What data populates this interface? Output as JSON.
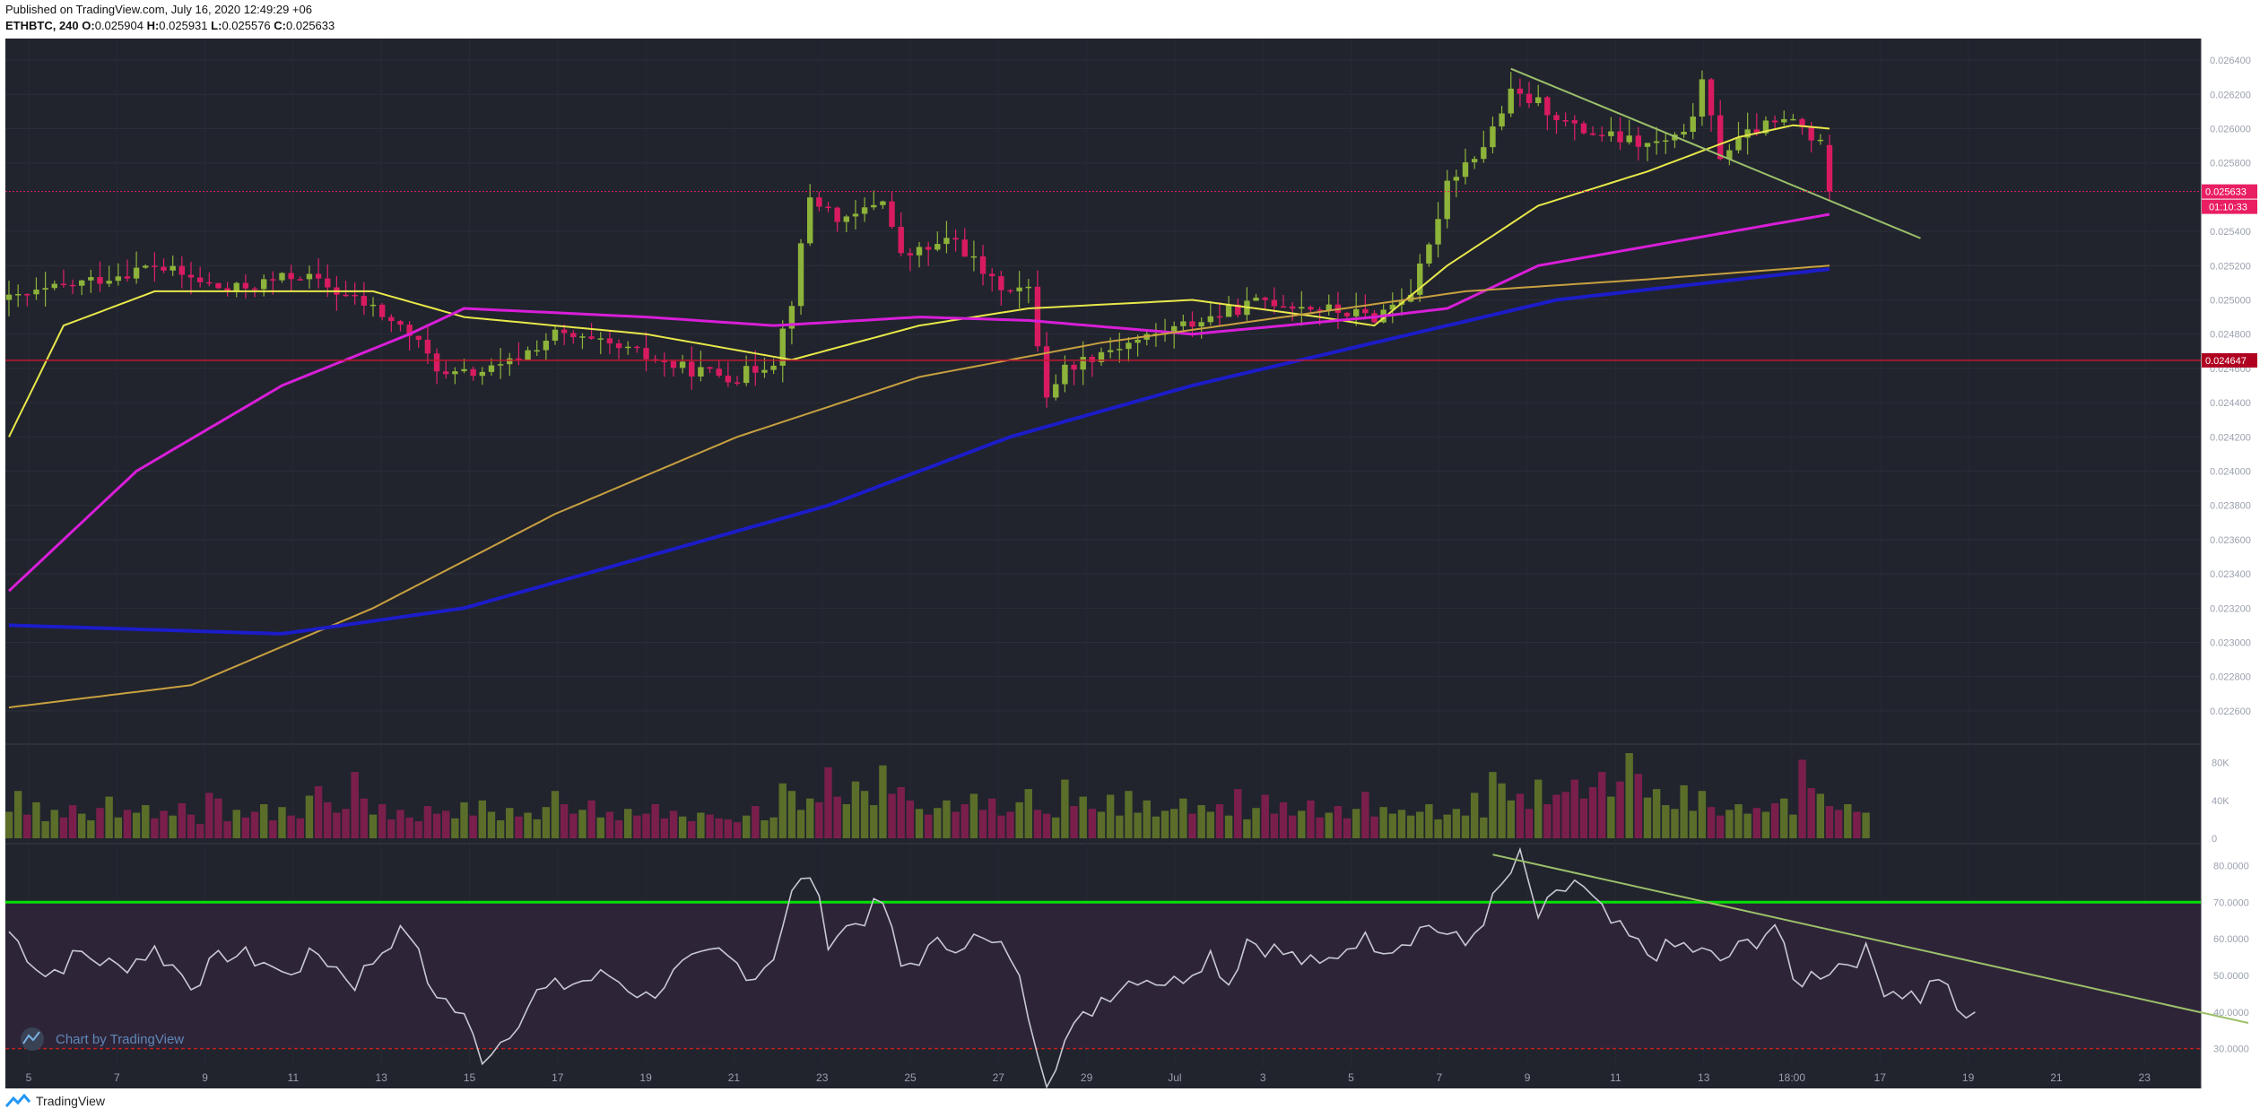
{
  "header": {
    "published": "Published on TradingView.com, July 16, 2020 12:49:29 +06",
    "symbol": "ETHBTC, 240",
    "o_label": "O:",
    "o": "0.025904",
    "h_label": "H:",
    "h": "0.025931",
    "l_label": "L:",
    "l": "0.025576",
    "c_label": "C:",
    "c": "0.025633"
  },
  "footer": {
    "brand": "TradingView"
  },
  "watermark": "Chart by TradingView",
  "colors": {
    "background": "#21242d",
    "up": "#6b8e23",
    "down": "#e91e63",
    "price_label": "#e91e63",
    "support_label": "#b00020",
    "ma_yellow": "#e8e84a",
    "ma_magenta": "#d81ed8",
    "ma_tan": "#c8a040",
    "ma_blue": "#1c1cc8",
    "trendline": "#9cc06a",
    "rsi_line": "#c8c8d2",
    "rsi_overbought": "#00e000",
    "rsi_oversold": "#c02020"
  },
  "chart_data": [
    {
      "type": "candlestick",
      "ylim": [
        0.0225,
        0.0265
      ],
      "y_ticks": [
        "0.026400",
        "0.026200",
        "0.026000",
        "0.025800",
        "0.025400",
        "0.025200",
        "0.025000",
        "0.024800",
        "0.024600",
        "0.024400",
        "0.024200",
        "0.024000",
        "0.023800",
        "0.023600",
        "0.023400",
        "0.023200",
        "0.023000",
        "0.022800",
        "0.022600"
      ],
      "x_ticks": [
        "5",
        "7",
        "9",
        "11",
        "13",
        "15",
        "17",
        "19",
        "21",
        "23",
        "25",
        "27",
        "29",
        "Jul",
        "3",
        "5",
        "7",
        "9",
        "11",
        "13",
        "18:00",
        "17",
        "19",
        "21",
        "23"
      ],
      "last_price": "0.025633",
      "countdown": "01:10:33",
      "support_level": "0.024647",
      "anchors": [
        [
          0,
          0.025
        ],
        [
          8,
          0.0251
        ],
        [
          16,
          0.0252
        ],
        [
          24,
          0.02505
        ],
        [
          32,
          0.02515
        ],
        [
          40,
          0.02495
        ],
        [
          44,
          0.0248
        ],
        [
          48,
          0.02455
        ],
        [
          54,
          0.0246
        ],
        [
          60,
          0.0248
        ],
        [
          68,
          0.0247
        ],
        [
          74,
          0.0246
        ],
        [
          80,
          0.02455
        ],
        [
          84,
          0.02465
        ],
        [
          86,
          0.025
        ],
        [
          88,
          0.0256
        ],
        [
          92,
          0.02545
        ],
        [
          96,
          0.0256
        ],
        [
          98,
          0.02525
        ],
        [
          104,
          0.02535
        ],
        [
          108,
          0.0251
        ],
        [
          112,
          0.02505
        ],
        [
          114,
          0.02445
        ],
        [
          116,
          0.0246
        ],
        [
          120,
          0.0247
        ],
        [
          126,
          0.0248
        ],
        [
          132,
          0.0249
        ],
        [
          138,
          0.025
        ],
        [
          144,
          0.02495
        ],
        [
          150,
          0.0249
        ],
        [
          154,
          0.02505
        ],
        [
          156,
          0.0253
        ],
        [
          158,
          0.0257
        ],
        [
          162,
          0.0259
        ],
        [
          165,
          0.0262
        ],
        [
          168,
          0.02615
        ],
        [
          172,
          0.026
        ],
        [
          176,
          0.02595
        ],
        [
          180,
          0.0259
        ],
        [
          184,
          0.02595
        ],
        [
          186,
          0.02625
        ],
        [
          188,
          0.02585
        ],
        [
          192,
          0.026
        ],
        [
          196,
          0.02605
        ],
        [
          199,
          0.0259
        ],
        [
          200,
          0.02563
        ]
      ],
      "moving_averages": [
        {
          "color": "yellow",
          "values": [
            [
              0,
              0.0242
            ],
            [
              6,
              0.02485
            ],
            [
              16,
              0.02505
            ],
            [
              40,
              0.02505
            ],
            [
              50,
              0.0249
            ],
            [
              70,
              0.0248
            ],
            [
              86,
              0.02465
            ],
            [
              100,
              0.02485
            ],
            [
              112,
              0.02495
            ],
            [
              130,
              0.025
            ],
            [
              144,
              0.0249
            ],
            [
              150,
              0.02485
            ],
            [
              158,
              0.0252
            ],
            [
              168,
              0.02555
            ],
            [
              180,
              0.02575
            ],
            [
              190,
              0.02595
            ],
            [
              196,
              0.02602
            ],
            [
              200,
              0.026
            ]
          ]
        },
        {
          "color": "magenta",
          "values": [
            [
              0,
              0.0233
            ],
            [
              14,
              0.024
            ],
            [
              30,
              0.0245
            ],
            [
              44,
              0.0248
            ],
            [
              50,
              0.02495
            ],
            [
              70,
              0.0249
            ],
            [
              84,
              0.02485
            ],
            [
              100,
              0.0249
            ],
            [
              112,
              0.02488
            ],
            [
              130,
              0.0248
            ],
            [
              150,
              0.0249
            ],
            [
              158,
              0.02495
            ],
            [
              168,
              0.0252
            ],
            [
              184,
              0.02535
            ],
            [
              200,
              0.0255
            ]
          ]
        },
        {
          "color": "tan",
          "values": [
            [
              0,
              0.02262
            ],
            [
              20,
              0.02275
            ],
            [
              40,
              0.0232
            ],
            [
              60,
              0.02375
            ],
            [
              80,
              0.0242
            ],
            [
              100,
              0.02455
            ],
            [
              120,
              0.02475
            ],
            [
              140,
              0.0249
            ],
            [
              160,
              0.02505
            ],
            [
              180,
              0.02512
            ],
            [
              200,
              0.0252
            ]
          ]
        },
        {
          "color": "blue",
          "values": [
            [
              0,
              0.0231
            ],
            [
              30,
              0.02305
            ],
            [
              50,
              0.0232
            ],
            [
              70,
              0.0235
            ],
            [
              90,
              0.0238
            ],
            [
              110,
              0.0242
            ],
            [
              130,
              0.0245
            ],
            [
              150,
              0.02475
            ],
            [
              170,
              0.025
            ],
            [
              190,
              0.02512
            ],
            [
              200,
              0.02518
            ]
          ]
        }
      ],
      "trendline": [
        [
          165,
          0.02635
        ],
        [
          210,
          0.02536
        ]
      ]
    },
    {
      "type": "bar",
      "name": "volume",
      "ylim": [
        0,
        90000
      ],
      "y_ticks": [
        "80K",
        "40K",
        "0"
      ],
      "values": [
        28000,
        50000,
        25000,
        38000,
        18000,
        30000,
        22000,
        35000,
        26000,
        19000,
        32000,
        44000,
        22000,
        30000,
        27000,
        35000,
        21000,
        29000,
        24000,
        37000,
        25000,
        15000,
        48000,
        42000,
        18000,
        30000,
        22000,
        28000,
        36000,
        19000,
        33000,
        24000,
        21000,
        45000,
        55000,
        38000,
        27000,
        31000,
        70000,
        42000,
        25000,
        36000,
        20000,
        30000,
        22000,
        18000,
        34000,
        26000,
        29000,
        21000,
        38000,
        24000,
        40000,
        28000,
        19000,
        32000,
        23000,
        27000,
        20000,
        33000,
        50000,
        36000,
        26000,
        30000,
        40000,
        22000,
        28000,
        19000,
        31000,
        24000,
        26000,
        36000,
        21000,
        29000,
        23000,
        18000,
        27000,
        25000,
        21000,
        20000,
        17000,
        24000,
        34000,
        19000,
        22000,
        58000,
        50000,
        30000,
        42000,
        38000,
        75000,
        44000,
        36000,
        60000,
        50000,
        35000,
        77000,
        47000,
        54000,
        40000,
        31000,
        25000,
        32000,
        40000,
        28000,
        36000,
        47000,
        30000,
        42000,
        24000,
        28000,
        38000,
        52000,
        30000,
        26000,
        22000,
        62000,
        34000,
        44000,
        31000,
        28000,
        46000,
        24000,
        50000,
        27000,
        40000,
        23000,
        29000,
        31000,
        42000,
        26000,
        35000,
        28000,
        36000,
        24000,
        52000,
        20000,
        32000,
        46000,
        26000,
        38000,
        24000,
        29000,
        40000,
        22000,
        27000,
        34000,
        21000,
        31000,
        49000,
        23000,
        33000,
        26000,
        30000,
        24000,
        28000,
        36000,
        20000,
        25000,
        31000,
        24000,
        48000,
        22000,
        70000,
        58000,
        40000,
        47000,
        31000,
        62000,
        36000,
        46000,
        49000,
        62000,
        42000,
        54000,
        70000,
        44000,
        60000,
        101000,
        68000,
        43000,
        52000,
        35000,
        31000,
        56000,
        29000,
        50000,
        33000,
        24000,
        30000,
        36000,
        26000,
        32000,
        28000,
        37000,
        42000,
        25000,
        83000,
        53000,
        47000,
        34000,
        30000,
        36000,
        28000,
        27000
      ]
    },
    {
      "type": "line",
      "name": "RSI",
      "ylim": [
        25,
        85
      ],
      "y_ticks": [
        "80.0000",
        "70.0000",
        "60.0000",
        "50.0000",
        "40.0000",
        "30.0000"
      ],
      "overbought": 70,
      "oversold": 30,
      "anchors": [
        [
          0,
          62
        ],
        [
          4,
          50
        ],
        [
          8,
          56
        ],
        [
          12,
          52
        ],
        [
          16,
          57
        ],
        [
          20,
          48
        ],
        [
          24,
          56
        ],
        [
          28,
          54
        ],
        [
          30,
          50
        ],
        [
          34,
          56
        ],
        [
          38,
          48
        ],
        [
          42,
          60
        ],
        [
          44,
          62
        ],
        [
          46,
          48
        ],
        [
          50,
          38
        ],
        [
          52,
          28
        ],
        [
          54,
          32
        ],
        [
          58,
          45
        ],
        [
          62,
          48
        ],
        [
          66,
          50
        ],
        [
          70,
          44
        ],
        [
          74,
          52
        ],
        [
          78,
          56
        ],
        [
          82,
          50
        ],
        [
          84,
          56
        ],
        [
          86,
          72
        ],
        [
          88,
          78
        ],
        [
          90,
          60
        ],
        [
          94,
          66
        ],
        [
          96,
          70
        ],
        [
          98,
          52
        ],
        [
          102,
          58
        ],
        [
          106,
          60
        ],
        [
          110,
          56
        ],
        [
          112,
          40
        ],
        [
          114,
          22
        ],
        [
          116,
          32
        ],
        [
          120,
          44
        ],
        [
          124,
          50
        ],
        [
          128,
          48
        ],
        [
          132,
          56
        ],
        [
          134,
          48
        ],
        [
          136,
          60
        ],
        [
          140,
          56
        ],
        [
          144,
          52
        ],
        [
          148,
          60
        ],
        [
          152,
          58
        ],
        [
          156,
          64
        ],
        [
          160,
          58
        ],
        [
          164,
          74
        ],
        [
          166,
          82
        ],
        [
          168,
          66
        ],
        [
          172,
          76
        ],
        [
          174,
          70
        ],
        [
          176,
          64
        ],
        [
          180,
          56
        ],
        [
          184,
          58
        ],
        [
          188,
          54
        ],
        [
          192,
          60
        ],
        [
          194,
          64
        ],
        [
          196,
          48
        ],
        [
          200,
          52
        ],
        [
          204,
          56
        ],
        [
          206,
          47
        ],
        [
          210,
          44
        ],
        [
          212,
          50
        ],
        [
          214,
          40
        ],
        [
          216,
          38
        ]
      ],
      "trendline": [
        [
          163,
          83
        ],
        [
          246,
          37
        ]
      ]
    }
  ]
}
